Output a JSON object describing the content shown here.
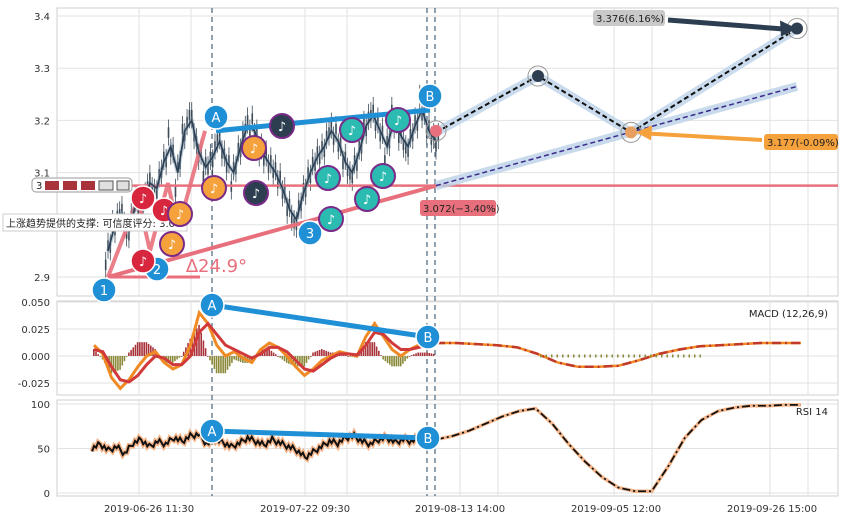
{
  "chart_data": [
    {
      "type": "line",
      "panel": "price",
      "ylim": [
        2.85,
        3.42
      ],
      "yticks": [
        "3.4",
        "3.3",
        "3.2",
        "3.1",
        "2.9"
      ],
      "series": [
        {
          "values": [
            2.95,
            3.0,
            3.02,
            2.99,
            3.04,
            3.03,
            3.08,
            3.07,
            3.12,
            3.15,
            3.1,
            3.18,
            3.2,
            3.14,
            3.11,
            3.13,
            3.16,
            3.12,
            3.1,
            3.15,
            3.19,
            3.18,
            3.14,
            3.12,
            3.1,
            3.07,
            3.03,
            3.01,
            3.06,
            3.1,
            3.13,
            3.15,
            3.18,
            3.16,
            3.12,
            3.1,
            3.14,
            3.19,
            3.21,
            3.18,
            3.15,
            3.2,
            3.17,
            3.15,
            3.19,
            3.22,
            3.18,
            3.16
          ]
        }
      ],
      "forecast_line": [
        3.177,
        3.285,
        3.177,
        3.376
      ],
      "trend_up_end": 3.265,
      "support_level": 3.075,
      "annotations": {
        "high": "3.376(6.16%)",
        "mid": "3.177(-0.09%)",
        "low": "3.072(−3.40%)",
        "angle": "∆24.9°",
        "support": "上涨趋势提供的支撑: 可信度评分: 3.0",
        "truncated": "3"
      },
      "wave_labels": [
        "A",
        "B",
        "1",
        "2",
        "3"
      ],
      "note_glyph": "♪",
      "colors": {
        "support": "#e8707c",
        "trend": "#1f8fd6",
        "dark": "#2c3e50",
        "orange": "#f5a13c",
        "red": "#d7263d",
        "teal": "#2bbbb0"
      }
    },
    {
      "type": "line",
      "panel": "macd",
      "title": "MACD (12,26,9)",
      "ylim": [
        -0.038,
        0.052
      ],
      "yticks": [
        "0.050",
        "0.025",
        "0.000",
        "-0.025"
      ],
      "series": [
        {
          "values": [
            0.01,
            0.002,
            -0.02,
            -0.03,
            -0.022,
            -0.01,
            0.0,
            0.004,
            -0.006,
            -0.012,
            -0.008,
            0.01,
            0.04,
            0.03,
            0.01,
            0.0,
            0.004,
            -0.002,
            -0.006,
            0.006,
            0.012,
            0.008,
            0.0,
            -0.01,
            -0.018,
            -0.012,
            -0.004,
            0.0,
            0.004,
            0.002,
            0.0,
            0.018,
            0.03,
            0.018,
            0.006,
            0.0,
            0.006,
            0.01,
            0.012,
            0.012
          ]
        },
        {
          "values": [
            0.006,
            0.004,
            -0.01,
            -0.022,
            -0.024,
            -0.018,
            -0.008,
            0.0,
            -0.002,
            -0.008,
            -0.008,
            0.0,
            0.022,
            0.03,
            0.02,
            0.01,
            0.006,
            0.002,
            -0.002,
            0.002,
            0.008,
            0.008,
            0.004,
            -0.004,
            -0.012,
            -0.014,
            -0.008,
            -0.002,
            0.002,
            0.002,
            0.001,
            0.01,
            0.022,
            0.02,
            0.012,
            0.006,
            0.006,
            0.008,
            0.01,
            0.011
          ]
        }
      ],
      "forecast": [
        0.012,
        0.012,
        0.011,
        0.01,
        0.008,
        0.002,
        -0.006,
        -0.01,
        -0.01,
        -0.009,
        -0.004,
        0.002,
        0.006,
        0.009,
        0.01,
        0.011,
        0.012,
        0.012,
        0.012
      ]
    },
    {
      "type": "line",
      "panel": "rsi",
      "title": "RSI 14",
      "ylim": [
        0,
        100
      ],
      "yticks": [
        "100",
        "50",
        "0"
      ],
      "series": [
        {
          "values": [
            50,
            55,
            48,
            52,
            44,
            56,
            60,
            52,
            58,
            55,
            62,
            58,
            64,
            66,
            55,
            60,
            57,
            52,
            56,
            62,
            58,
            54,
            60,
            56,
            52,
            48,
            40,
            46,
            52,
            58,
            56,
            62,
            64,
            58,
            55,
            60,
            62,
            57,
            60,
            58,
            62,
            58,
            60
          ]
        }
      ],
      "forecast": [
        60,
        64,
        70,
        78,
        86,
        92,
        95,
        78,
        55,
        35,
        18,
        6,
        2,
        2,
        30,
        62,
        82,
        92,
        96,
        98,
        98,
        99,
        99
      ]
    }
  ],
  "x_labels": [
    "2019-06-26 11:30",
    "2019-07-22 09:30",
    "2019-08-13 14:00",
    "2019-09-05 12:00",
    "2019-09-26 15:00"
  ]
}
